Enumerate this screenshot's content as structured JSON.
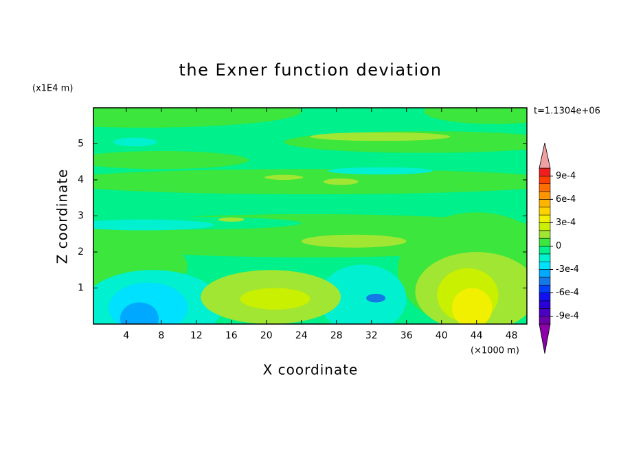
{
  "chart_data": {
    "type": "contour",
    "title": "the Exner function deviation",
    "xlabel": "X coordinate",
    "ylabel": "Z coordinate",
    "x_unit": "(×1000 m)",
    "y_unit": "(x1E4 m)",
    "time_label": "t=1.1304e+06",
    "xlim": [
      0.25,
      49.75
    ],
    "ylim": [
      0,
      6
    ],
    "xticks": [
      4,
      8,
      12,
      16,
      20,
      24,
      28,
      32,
      36,
      40,
      44,
      48
    ],
    "yticks": [
      1,
      2,
      3,
      4,
      5
    ],
    "colorbar": {
      "levels": [
        -0.001,
        -0.0009,
        -0.0008,
        -0.0007,
        -0.0006,
        -0.0005,
        -0.0004,
        -0.0003,
        -0.0002,
        -0.0001,
        0,
        0.0001,
        0.0002,
        0.0003,
        0.0004,
        0.0005,
        0.0006,
        0.0007,
        0.0008,
        0.0009,
        0.001
      ],
      "colors": [
        "#6a00a8",
        "#4a00c0",
        "#2a00d8",
        "#1010f0",
        "#0040ff",
        "#1478e6",
        "#00a8ff",
        "#00e0ff",
        "#00f0d0",
        "#00f08c",
        "#3ce63c",
        "#a0e632",
        "#c8f000",
        "#f0f000",
        "#ffd200",
        "#ffb400",
        "#ff9600",
        "#ff6e00",
        "#ff4000",
        "#f01e1e"
      ],
      "extend_colors": [
        "#8c00aa",
        "#f0a0a0"
      ],
      "ticks": [
        {
          "value": -0.0009,
          "label": "-9e-4"
        },
        {
          "value": -0.0006,
          "label": "-6e-4"
        },
        {
          "value": -0.0003,
          "label": "-3e-4"
        },
        0,
        {
          "value": 0.0003,
          "label": "3e-4"
        },
        {
          "value": 0.0006,
          "label": "6e-4"
        },
        {
          "value": 0.0009,
          "label": "9e-4"
        }
      ]
    }
  }
}
